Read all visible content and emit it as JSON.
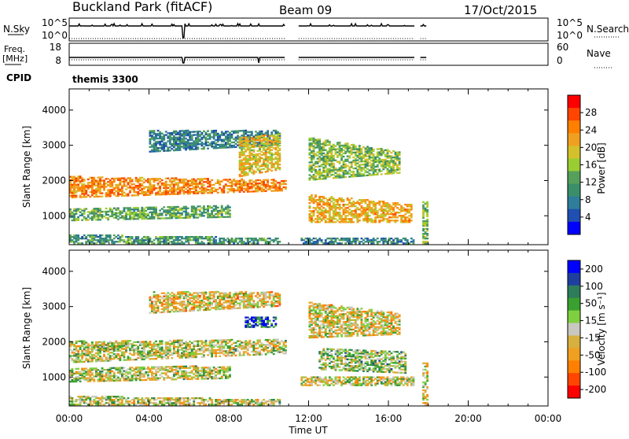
{
  "header": {
    "station": "Buckland Park (fitACF)",
    "beam": "Beam 09",
    "date": "17/Oct/2015"
  },
  "aux_panels": {
    "nsky_label": "N.Sky",
    "nsky_ticks": [
      "10^5",
      "10^0"
    ],
    "nsearch_label": "N.Search",
    "nsearch_ticks": [
      "10^5",
      "10^0"
    ],
    "freq_label": "Freq.",
    "freq_unit": "[MHz]",
    "freq_ticks": [
      "18",
      "8"
    ],
    "nave_label": "Nave",
    "nave_ticks": [
      "60",
      "0"
    ],
    "cpid_label": "CPID",
    "cpid_value": "themis 3300"
  },
  "colors": {
    "power_scale": [
      "#0000ff",
      "#1f4fb0",
      "#2e7d9a",
      "#3a8f6a",
      "#55a05a",
      "#9acd32",
      "#d4c02a",
      "#f0a020",
      "#ff7f00",
      "#ff4500",
      "#ff0000"
    ],
    "velocity_scale": [
      "#0000ff",
      "#1f3f9f",
      "#2e7d5a",
      "#3aa030",
      "#7fd040",
      "#c8c8c0",
      "#d8b040",
      "#f0a020",
      "#ff7f00",
      "#ff4500",
      "#ff0000"
    ]
  },
  "chart_data": [
    {
      "type": "heatmap",
      "name": "power",
      "ylabel": "Slant Range [km]",
      "ylim": [
        180,
        4600
      ],
      "xlim": [
        0,
        24
      ],
      "y_ticks": [
        "1000",
        "2000",
        "3000",
        "4000"
      ],
      "colorbar_label": "Power [dB]",
      "colorbar_ticks": [
        "4",
        "8",
        "12",
        "16",
        "20",
        "24",
        "28"
      ],
      "colorbar_range": [
        0,
        30
      ],
      "bands": [
        {
          "t0": 0.0,
          "t1": 10.8,
          "r0a": 1500,
          "r0b": 1700,
          "r1a": 2100,
          "r1b": 2000,
          "v": 22
        },
        {
          "t0": 0.0,
          "t1": 8.0,
          "r0a": 850,
          "r0b": 950,
          "r1a": 1200,
          "r1b": 1300,
          "v": 12
        },
        {
          "t0": 0.0,
          "t1": 10.5,
          "r0a": 200,
          "r0b": 200,
          "r1a": 450,
          "r1b": 350,
          "v": 10
        },
        {
          "t0": 4.0,
          "t1": 10.5,
          "r0a": 2800,
          "r0b": 3000,
          "r1a": 3400,
          "r1b": 3400,
          "v": 8
        },
        {
          "t0": 8.5,
          "t1": 10.5,
          "r0a": 2100,
          "r0b": 2300,
          "r1a": 3200,
          "r1b": 3300,
          "v": 18
        },
        {
          "t0": 12.0,
          "t1": 16.5,
          "r0a": 2000,
          "r0b": 2200,
          "r1a": 3200,
          "r1b": 2800,
          "v": 14
        },
        {
          "t0": 12.0,
          "t1": 17.2,
          "r0a": 800,
          "r0b": 800,
          "r1a": 1600,
          "r1b": 1300,
          "v": 20
        },
        {
          "t0": 11.5,
          "t1": 17.3,
          "r0a": 200,
          "r0b": 200,
          "r1a": 350,
          "r1b": 350,
          "v": 8
        },
        {
          "t0": 17.6,
          "t1": 17.95,
          "r0a": 200,
          "r0b": 200,
          "r1a": 1400,
          "r1b": 1400,
          "v": 14
        }
      ]
    },
    {
      "type": "heatmap",
      "name": "velocity",
      "ylabel": "Slant Range [km]",
      "ylim": [
        180,
        4600
      ],
      "xlim": [
        0,
        24
      ],
      "y_ticks": [
        "1000",
        "2000",
        "3000",
        "4000"
      ],
      "colorbar_label": "Velocity [m s⁻¹]",
      "colorbar_ticks": [
        "200",
        "100",
        "50",
        "15",
        "-15",
        "-50",
        "-100",
        "-200"
      ],
      "colorbar_range": [
        -250,
        250
      ],
      "bands": [
        {
          "t0": 0.0,
          "t1": 10.8,
          "r0a": 1400,
          "r0b": 1650,
          "r1a": 2000,
          "r1b": 2050,
          "v": 0
        },
        {
          "t0": 0.0,
          "t1": 8.0,
          "r0a": 850,
          "r0b": 950,
          "r1a": 1250,
          "r1b": 1300,
          "v": 0
        },
        {
          "t0": 0.0,
          "t1": 10.5,
          "r0a": 200,
          "r0b": 200,
          "r1a": 450,
          "r1b": 350,
          "v": 0
        },
        {
          "t0": 4.0,
          "t1": 10.5,
          "r0a": 2800,
          "r0b": 3000,
          "r1a": 3400,
          "r1b": 3400,
          "v": -40
        },
        {
          "t0": 8.8,
          "t1": 10.3,
          "r0a": 2400,
          "r0b": 2400,
          "r1a": 2700,
          "r1b": 2700,
          "v": 180
        },
        {
          "t0": 12.0,
          "t1": 16.5,
          "r0a": 2100,
          "r0b": 2200,
          "r1a": 3100,
          "r1b": 2800,
          "v": -30
        },
        {
          "t0": 12.5,
          "t1": 16.8,
          "r0a": 1200,
          "r0b": 1100,
          "r1a": 1800,
          "r1b": 1700,
          "v": 40
        },
        {
          "t0": 11.5,
          "t1": 17.3,
          "r0a": 750,
          "r0b": 750,
          "r1a": 1000,
          "r1b": 1000,
          "v": 0
        },
        {
          "t0": 17.6,
          "t1": 17.95,
          "r0a": 200,
          "r0b": 200,
          "r1a": 1400,
          "r1b": 1400,
          "v": -20
        }
      ]
    }
  ],
  "x_axis": {
    "label": "Time UT",
    "ticks": [
      "00:00",
      "04:00",
      "08:00",
      "12:00",
      "16:00",
      "20:00",
      "00:00"
    ],
    "tick_hours": [
      0,
      4,
      8,
      12,
      16,
      20,
      24
    ]
  },
  "data_gaps_hours": [
    [
      10.85,
      11.5
    ],
    [
      17.35,
      17.6
    ]
  ]
}
